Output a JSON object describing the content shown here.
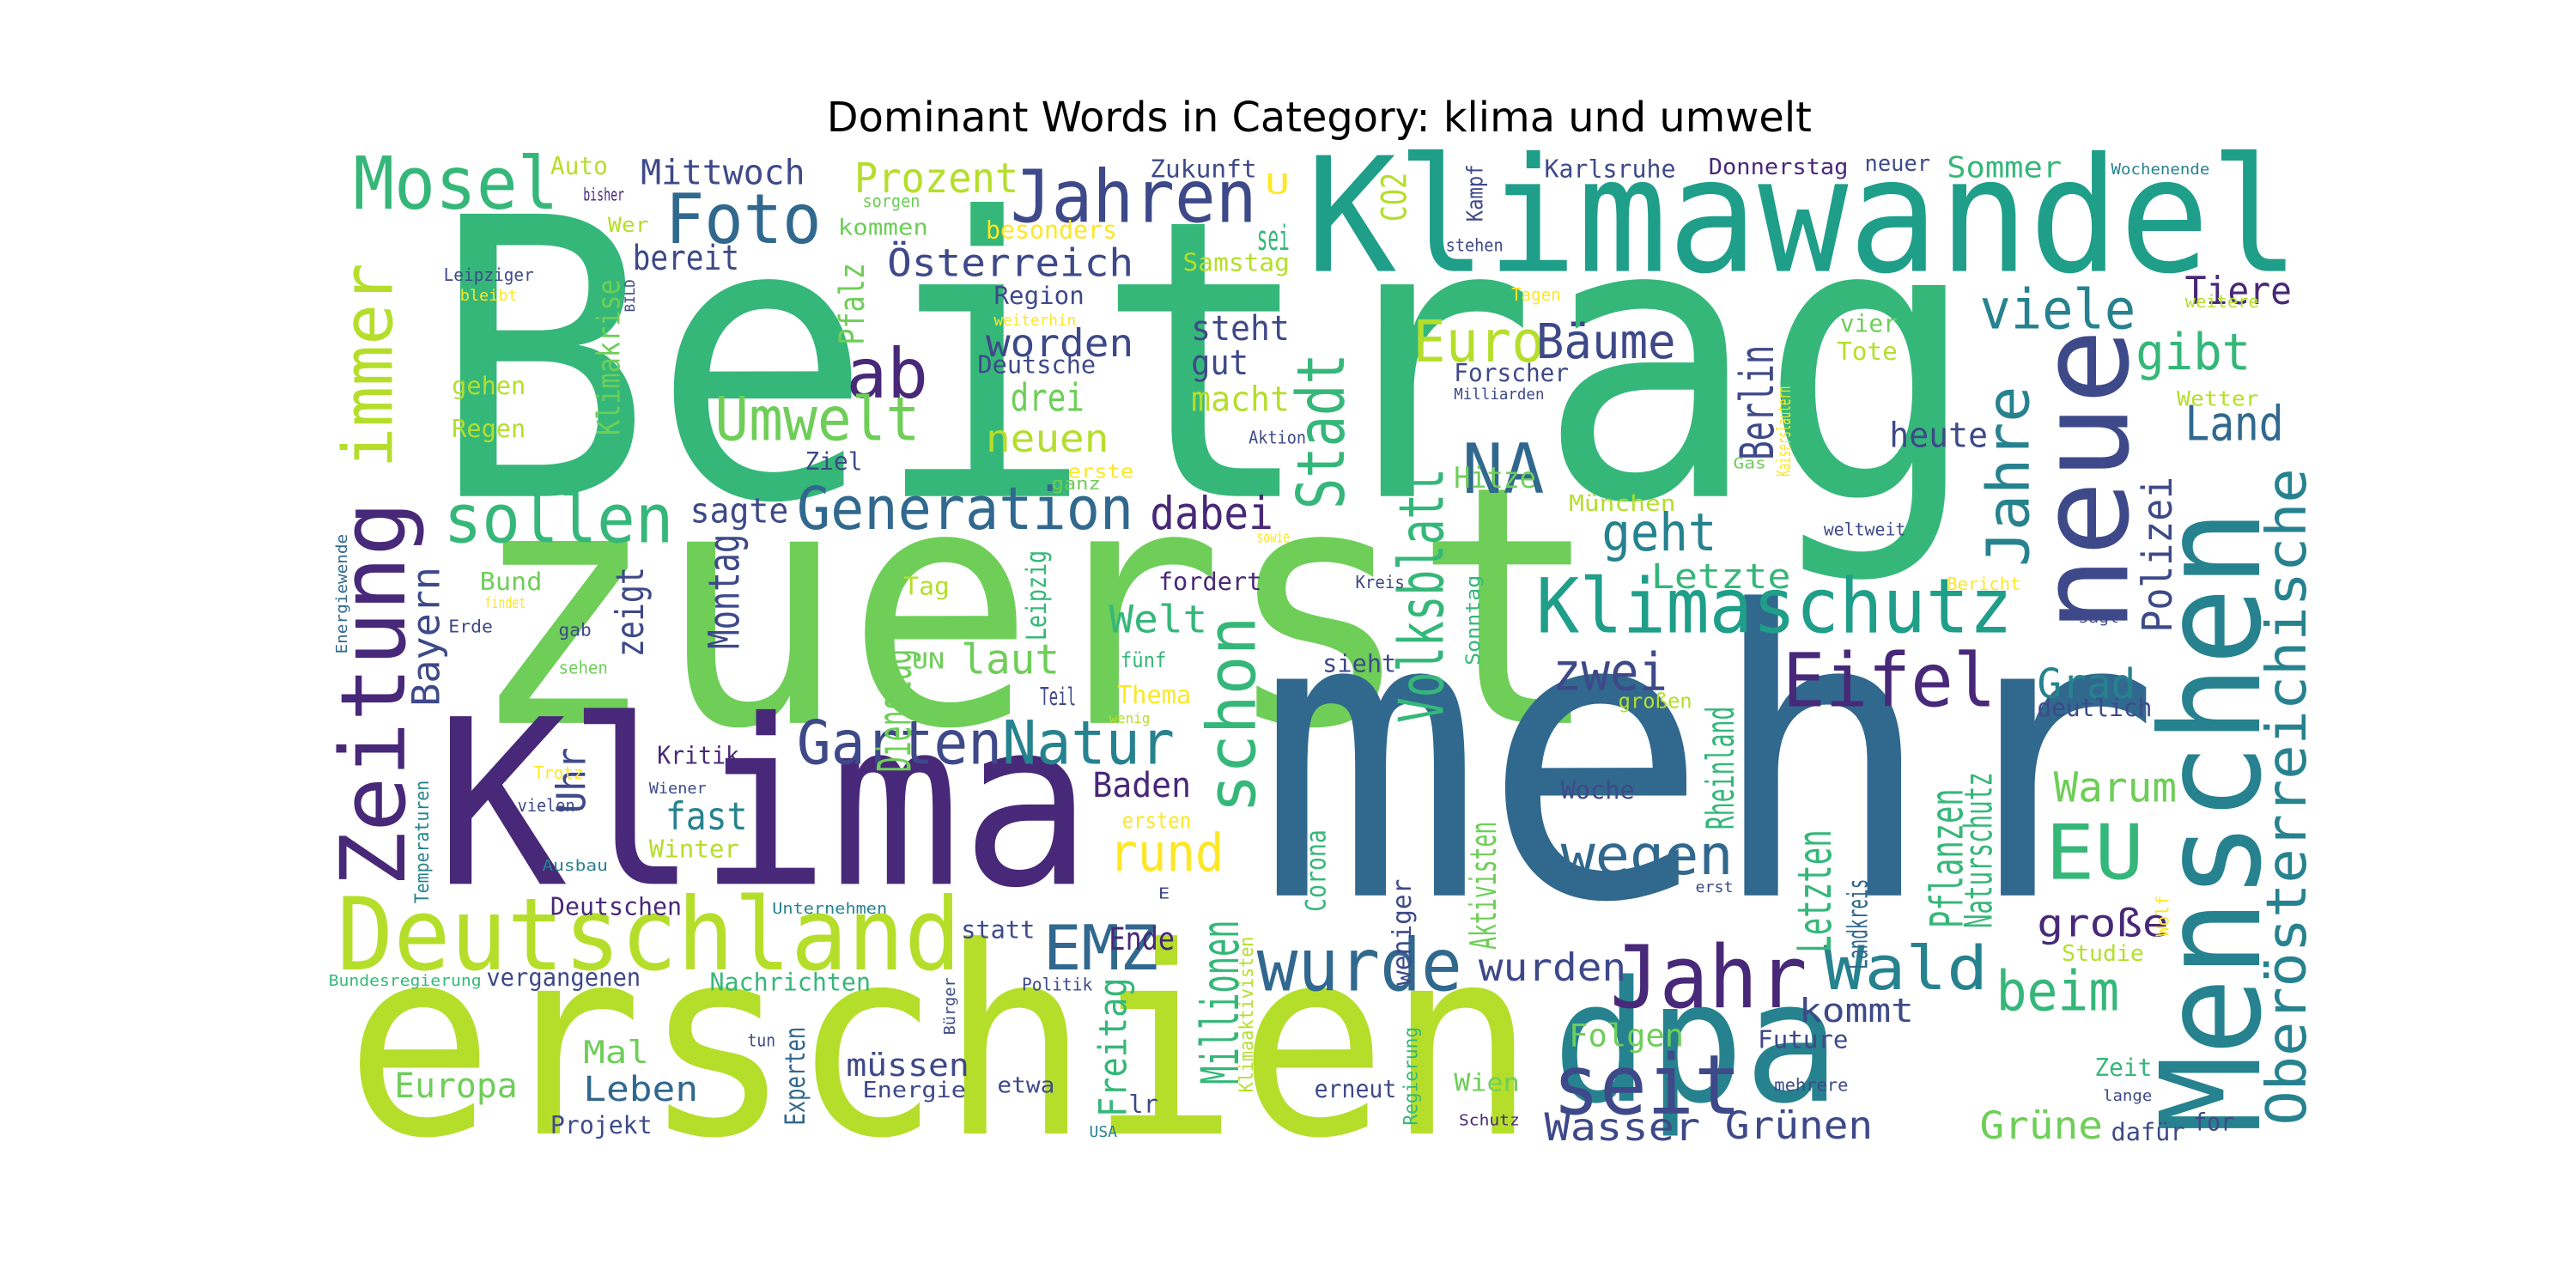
{
  "chart_data": {
    "type": "wordcloud",
    "title": "Dominant Words in Category: klima und umwelt",
    "words": [
      "Beitrag",
      "zuerst",
      "mehr",
      "erschien",
      "Klima",
      "Klimawandel",
      "Menschen",
      "neue",
      "dpa",
      "Deutschland",
      "Zeitung",
      "Jahr",
      "seit",
      "wurde",
      "Foto",
      "Jahren",
      "Mosel",
      "immer",
      "ab",
      "Umwelt",
      "sollen",
      "Generation",
      "Garten",
      "Natur",
      "schon",
      "Stadt",
      "Volksblatt",
      "Euro",
      "NA",
      "Bäume",
      "viele",
      "gibt",
      "Tiere",
      "Land",
      "geht",
      "Jahre",
      "Klimaschutz",
      "zwei",
      "Eifel",
      "EU",
      "Polizei",
      "Oberösterreichische",
      "Grad",
      "Warum",
      "große",
      "beim",
      "Wald",
      "Pflanzen",
      "Naturschutz",
      "Letzten",
      "Rheinland",
      "Landkreis",
      "Berlin",
      "heute",
      "Letzte",
      "wegen",
      "EMZ",
      "rund",
      "Baden",
      "Ende",
      "Millionen",
      "Freitag",
      "Welt",
      "laut",
      "Dienstag",
      "Montag",
      "dabei",
      "sagte",
      "zeigt",
      "Bayern",
      "Uhr",
      "fast",
      "Winter",
      "Kritik",
      "Österreich",
      "worden",
      "drei",
      "neuen",
      "steht",
      "gut",
      "macht",
      "sei",
      "Prozent",
      "Mittwoch",
      "bereit",
      "Klimakrise",
      "Pfalz",
      "Deutsche",
      "Region",
      "Samstag",
      "Zukunft",
      "besonders",
      "kommen",
      "Auto",
      "Wer",
      "bisher",
      "sorgen",
      "CO2",
      "U",
      "Kampf",
      "stehen",
      "Karlsruhe",
      "Donnerstag",
      "neuer",
      "Sommer",
      "Wochenende",
      "Tagen",
      "Forscher",
      "Milliarden",
      "Hitze",
      "Aktion",
      "München",
      "Kaiserslautern",
      "Gas",
      "vier",
      "Tote",
      "Wetter",
      "weitere",
      "weltweit",
      "sagt",
      "Bericht",
      "deutlich",
      "Wolf",
      "Studie",
      "Zeit",
      "lange",
      "for",
      "dafür",
      "Grüne",
      "Grünen",
      "Wasser",
      "Future",
      "mehrere",
      "kommt",
      "Folgen",
      "wurden",
      "weniger",
      "Aktivisten",
      "Klimaaktivisten",
      "Corona",
      "erneut",
      "Regierung",
      "Wien",
      "Schutz",
      "Woche",
      "erst",
      "großen",
      "Sonntag",
      "sieht",
      "Kreis",
      "fordert",
      "fünf",
      "Thema",
      "wenig",
      "Teil",
      "UN",
      "Leipzig",
      "Tag",
      "sowie",
      "ganz",
      "erste",
      "Ziel",
      "gehen",
      "Regen",
      "Leipziger",
      "bleibt",
      "BILD",
      "weiterhin",
      "Energiewende",
      "Bund",
      "findet",
      "Erde",
      "gab",
      "sehen",
      "Trotz",
      "vielen",
      "Ausbau",
      "Temperaturen",
      "Wiener",
      "Deutschen",
      "Unternehmen",
      "statt",
      "Bundesregierung",
      "vergangenen",
      "Nachrichten",
      "Bürger",
      "Politik",
      "Mal",
      "Europa",
      "Leben",
      "Projekt",
      "tun",
      "Experten",
      "müssen",
      "Energie",
      "etwa",
      "lr",
      "USA",
      "E",
      "ersten"
    ]
  }
}
